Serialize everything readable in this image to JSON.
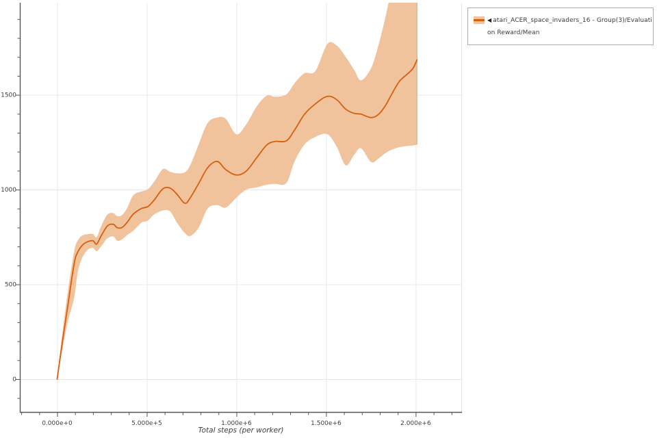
{
  "legend": {
    "collapse_glyph": "◀",
    "label_line1": "atari_ACER_space_invaders_16 - Group(3)/Evaluati",
    "label_line2": "on Reward/Mean",
    "full_label": "atari_ACER_space_invaders_16 - Group(3)/Evaluation Reward/Mean"
  },
  "chart_data": {
    "type": "line",
    "title": "",
    "xlabel": "Total steps (per worker)",
    "ylabel": "",
    "grid": true,
    "legend_position": "top-right",
    "xlim": [
      -208000,
      2258000
    ],
    "ylim": [
      -177,
      1986
    ],
    "x_ticks": {
      "values": [
        0,
        500000,
        1000000,
        1500000,
        2000000
      ],
      "labels": [
        "0.000e+0",
        "5.000e+5",
        "1.000e+6",
        "1.500e+6",
        "2.000e+6"
      ],
      "minor_step": 100000
    },
    "y_ticks": {
      "values": [
        0,
        500,
        1000,
        1500
      ],
      "labels": [
        "0",
        "500",
        "1000",
        "1500"
      ],
      "minor_step": 100
    },
    "series": [
      {
        "name": "atari_ACER_space_invaders_16 - Group(3)/Evaluation Reward/Mean",
        "color": "#d55f0d",
        "band_color": "#f1c39d",
        "band_edge_color": "#e5a97d",
        "x": [
          0,
          30000,
          60000,
          95000,
          115000,
          140000,
          170000,
          200000,
          220000,
          245000,
          280000,
          313000,
          335000,
          362000,
          390000,
          425000,
          470000,
          505000,
          540000,
          590000,
          630000,
          668000,
          713000,
          745000,
          790000,
          840000,
          893000,
          940000,
          1000000,
          1055000,
          1115000,
          1170000,
          1215000,
          1278000,
          1325000,
          1380000,
          1440000,
          1507000,
          1560000,
          1610000,
          1658000,
          1695000,
          1751000,
          1790000,
          1830000,
          1870000,
          1910000,
          1955000,
          1985000,
          2007000
        ],
        "mean": [
          0,
          200,
          390,
          610,
          670,
          706,
          725,
          730,
          712,
          755,
          808,
          817,
          799,
          800,
          827,
          871,
          900,
          910,
          943,
          1004,
          1008,
          976,
          928,
          961,
          1033,
          1116,
          1149,
          1106,
          1077,
          1098,
          1171,
          1236,
          1254,
          1257,
          1315,
          1398,
          1452,
          1492,
          1474,
          1424,
          1402,
          1398,
          1380,
          1395,
          1442,
          1510,
          1572,
          1611,
          1640,
          1684
        ],
        "band_low": [
          0,
          160,
          305,
          430,
          565,
          640,
          682,
          692,
          675,
          700,
          742,
          753,
          730,
          737,
          760,
          783,
          825,
          836,
          868,
          890,
          885,
          826,
          770,
          756,
          800,
          900,
          918,
          905,
          958,
          1000,
          1012,
          1026,
          1030,
          1034,
          1150,
          1238,
          1278,
          1292,
          1225,
          1128,
          1185,
          1218,
          1146,
          1162,
          1192,
          1212,
          1224,
          1230,
          1233,
          1237
        ],
        "band_high": [
          0,
          250,
          465,
          675,
          730,
          758,
          765,
          766,
          748,
          806,
          868,
          876,
          860,
          866,
          902,
          970,
          990,
          1002,
          1040,
          1108,
          1094,
          1086,
          1092,
          1134,
          1240,
          1352,
          1380,
          1374,
          1292,
          1345,
          1442,
          1496,
          1490,
          1502,
          1562,
          1614,
          1625,
          1768,
          1760,
          1700,
          1630,
          1576,
          1640,
          1755,
          1905,
          2080,
          2220,
          2330,
          2380,
          2400
        ]
      }
    ]
  },
  "colors": {
    "axis": "#555555",
    "grid": "#e8e8e8",
    "tick_label": "#3d3d3d",
    "legend_border": "#ababab",
    "background": "#ffffff"
  }
}
